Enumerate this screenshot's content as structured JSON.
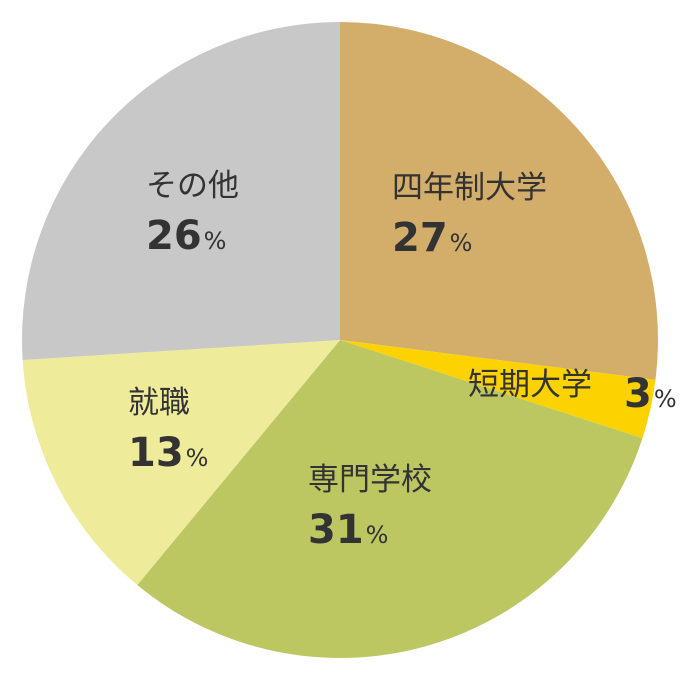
{
  "chart_data": {
    "type": "pie",
    "title": "",
    "start_angle_deg": 0,
    "direction": "clockwise",
    "legend": "none",
    "percent_sign": "%",
    "slices": [
      {
        "label": "四年制大学",
        "value": 27,
        "color": "#D2AE6A"
      },
      {
        "label": "短期大学",
        "value": 3,
        "color": "#FCD200"
      },
      {
        "label": "専門学校",
        "value": 31,
        "color": "#BCC762"
      },
      {
        "label": "就職",
        "value": 13,
        "color": "#EEEC9A"
      },
      {
        "label": "その他",
        "value": 26,
        "color": "#C8C8C8"
      }
    ]
  }
}
